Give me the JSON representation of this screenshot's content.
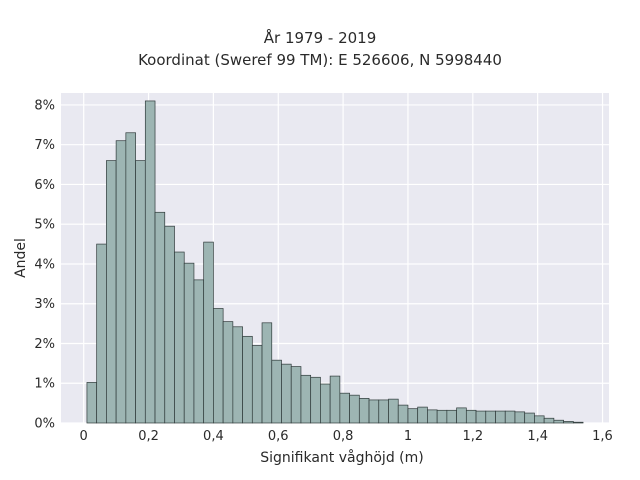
{
  "chart_data": {
    "type": "bar",
    "title_lines": [
      "År 1979 - 2019",
      "Koordinat (Sweref 99 TM): E 526606, N 5998440"
    ],
    "xlabel": "Signifikant våghöjd (m)",
    "ylabel": "Andel",
    "xlim": [
      -0.07,
      1.62
    ],
    "ylim": [
      0,
      8.3
    ],
    "x_ticks": [
      {
        "value": 0,
        "label": "0"
      },
      {
        "value": 0.2,
        "label": "0,2"
      },
      {
        "value": 0.4,
        "label": "0,4"
      },
      {
        "value": 0.6,
        "label": "0,6"
      },
      {
        "value": 0.8,
        "label": "0,8"
      },
      {
        "value": 1.0,
        "label": "1"
      },
      {
        "value": 1.2,
        "label": "1,2"
      },
      {
        "value": 1.4,
        "label": "1,4"
      },
      {
        "value": 1.6,
        "label": "1,6"
      }
    ],
    "y_ticks": [
      {
        "value": 0,
        "label": "0%"
      },
      {
        "value": 1,
        "label": "1%"
      },
      {
        "value": 2,
        "label": "2%"
      },
      {
        "value": 3,
        "label": "3%"
      },
      {
        "value": 4,
        "label": "4%"
      },
      {
        "value": 5,
        "label": "5%"
      },
      {
        "value": 6,
        "label": "6%"
      },
      {
        "value": 7,
        "label": "7%"
      },
      {
        "value": 8,
        "label": "8%"
      }
    ],
    "bin_width": 0.03,
    "bin_start": 0.01,
    "values": [
      1.02,
      4.5,
      6.6,
      7.1,
      7.3,
      6.6,
      8.1,
      5.3,
      4.95,
      4.3,
      4.02,
      3.6,
      4.55,
      2.88,
      2.55,
      2.42,
      2.18,
      1.95,
      2.52,
      1.58,
      1.48,
      1.42,
      1.2,
      1.15,
      0.98,
      1.18,
      0.75,
      0.7,
      0.62,
      0.58,
      0.58,
      0.6,
      0.45,
      0.36,
      0.4,
      0.33,
      0.32,
      0.32,
      0.38,
      0.32,
      0.3,
      0.3,
      0.3,
      0.3,
      0.28,
      0.25,
      0.18,
      0.12,
      0.07,
      0.04,
      0.02
    ],
    "grid": true,
    "colors": {
      "background": "#e9e9f1",
      "bar_fill": "#9db5b3",
      "bar_edge": "#2f3a3a",
      "grid": "#ffffff",
      "text": "#2a2a2a"
    }
  }
}
